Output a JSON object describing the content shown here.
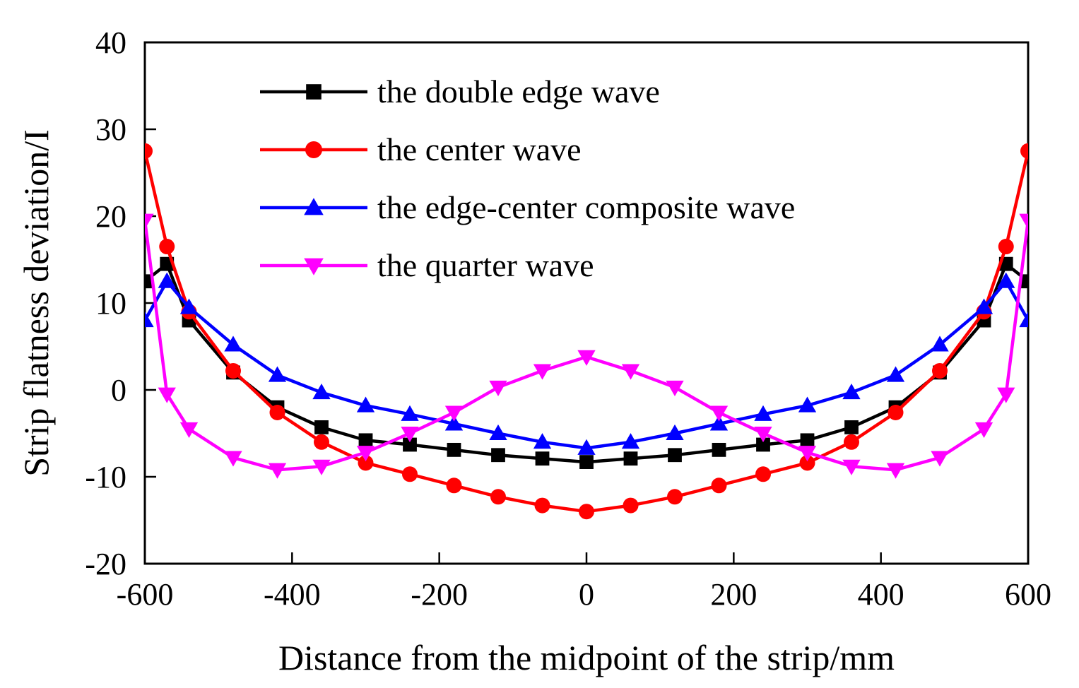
{
  "chart_data": {
    "type": "line",
    "title": "",
    "xlabel": "Distance from the midpoint of the strip/mm",
    "ylabel": "Strip flatness deviation/I",
    "xlim": [
      -600,
      600
    ],
    "ylim": [
      -20,
      40
    ],
    "x_ticks": [
      -600,
      -400,
      -200,
      0,
      200,
      400,
      600
    ],
    "y_ticks": [
      -20,
      -10,
      0,
      10,
      20,
      30,
      40
    ],
    "x_tick_labels": [
      "-600",
      "-400",
      "-200",
      "0",
      "200",
      "400",
      "600"
    ],
    "y_tick_labels": [
      "-20",
      "-10",
      "0",
      "10",
      "20",
      "30",
      "40"
    ],
    "grid": false,
    "legend_position": "top-center",
    "x": [
      -600,
      -570,
      -540,
      -480,
      -420,
      -360,
      -300,
      -240,
      -180,
      -120,
      -60,
      0,
      60,
      120,
      180,
      240,
      300,
      360,
      420,
      480,
      540,
      570,
      600
    ],
    "series": [
      {
        "name": "the double edge wave",
        "color": "#000000",
        "marker": "square",
        "values": [
          12.5,
          14.5,
          8.0,
          2.0,
          -2.0,
          -4.3,
          -5.8,
          -6.3,
          -6.9,
          -7.5,
          -7.9,
          -8.3,
          -7.9,
          -7.5,
          -6.9,
          -6.3,
          -5.8,
          -4.3,
          -2.0,
          2.0,
          8.0,
          14.5,
          12.5
        ]
      },
      {
        "name": "the center wave",
        "color": "#ff0000",
        "marker": "circle",
        "values": [
          27.5,
          16.5,
          9.0,
          2.2,
          -2.6,
          -6.0,
          -8.4,
          -9.7,
          -11.0,
          -12.3,
          -13.3,
          -14.0,
          -13.3,
          -12.3,
          -11.0,
          -9.7,
          -8.4,
          -6.0,
          -2.6,
          2.2,
          9.0,
          16.5,
          27.5
        ]
      },
      {
        "name": "the edge-center composite wave",
        "color": "#0000ff",
        "marker": "triangle-up",
        "values": [
          8.0,
          12.5,
          9.5,
          5.2,
          1.7,
          -0.3,
          -1.8,
          -2.8,
          -3.9,
          -5.0,
          -6.0,
          -6.7,
          -6.0,
          -5.0,
          -3.9,
          -2.8,
          -1.8,
          -0.3,
          1.7,
          5.2,
          9.5,
          12.5,
          8.0
        ]
      },
      {
        "name": "the quarter wave",
        "color": "#ff00ff",
        "marker": "triangle-down",
        "values": [
          19.5,
          -0.5,
          -4.5,
          -7.8,
          -9.2,
          -8.8,
          -7.2,
          -5.0,
          -2.6,
          0.3,
          2.2,
          3.8,
          2.2,
          0.3,
          -2.6,
          -5.0,
          -7.2,
          -8.8,
          -9.2,
          -7.8,
          -4.5,
          -0.5,
          19.5
        ]
      }
    ]
  }
}
